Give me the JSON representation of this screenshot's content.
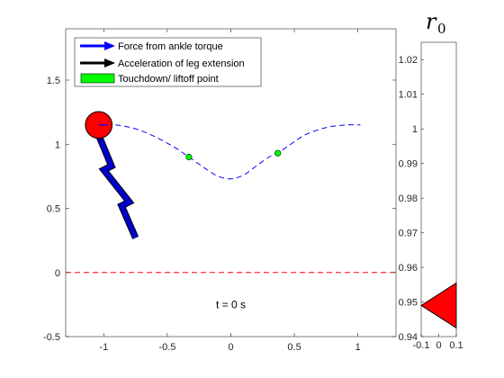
{
  "chart_data": [
    {
      "type": "line",
      "title": "",
      "xlabel": "",
      "ylabel": "",
      "xlim": [
        -1.3,
        1.3
      ],
      "ylim": [
        -0.5,
        1.9
      ],
      "x_ticks": [
        -1,
        -0.5,
        0,
        0.5,
        1
      ],
      "x_tick_labels": [
        "-1",
        "-0.5",
        "0",
        "0.5",
        "1"
      ],
      "y_ticks": [
        -0.5,
        0,
        0.5,
        1,
        1.5
      ],
      "y_tick_labels": [
        "-0.5",
        "0",
        "0.5",
        "1",
        "1.5"
      ],
      "grid": false,
      "legend_position": "top-left",
      "legend": [
        {
          "label": "Force from ankle torque",
          "color": "#0000ff",
          "marker": "arrow"
        },
        {
          "label": "Acceleration of leg extension",
          "color": "#000000",
          "marker": "arrow"
        },
        {
          "label": "Touchdown/ liftoff point",
          "color": "#00ff00",
          "marker": "patch"
        }
      ],
      "series": [
        {
          "style": "dashed",
          "color": "#0000ff",
          "x": [
            -1.05,
            -0.9,
            -0.75,
            -0.6,
            -0.45,
            -0.33,
            -0.2,
            -0.1,
            0,
            0.1,
            0.2,
            0.3,
            0.37,
            0.5,
            0.6,
            0.75,
            0.9,
            1.02
          ],
          "y": [
            1.16,
            1.15,
            1.12,
            1.06,
            0.98,
            0.9,
            0.81,
            0.75,
            0.73,
            0.76,
            0.83,
            0.9,
            0.93,
            1.02,
            1.08,
            1.13,
            1.15,
            1.15
          ]
        },
        {
          "style": "dashed",
          "color": "#ff0000",
          "x": [
            -1.3,
            1.3
          ],
          "y": [
            0,
            0
          ]
        }
      ],
      "touchdown_points": [
        {
          "x": -0.33,
          "y": 0.9
        },
        {
          "x": 0.37,
          "y": 0.93
        }
      ],
      "body": {
        "x": -1.04,
        "y": 1.15,
        "radius": 0.105,
        "color": "#ff0000"
      },
      "leg": {
        "color": "#0000cc",
        "x": [
          -1.04,
          -0.94,
          -1.0,
          -0.8,
          -0.86,
          -0.75
        ],
        "y": [
          1.07,
          0.83,
          0.8,
          0.55,
          0.52,
          0.27
        ]
      },
      "annotation": {
        "text": "t = 0 s",
        "x": 0,
        "y": -0.25
      }
    },
    {
      "type": "bar",
      "title": "r0",
      "title_main": "r",
      "title_sub": "0",
      "xlim": [
        -0.1,
        0.1
      ],
      "ylim": [
        0.94,
        1.025
      ],
      "x_tick_labels": [
        "-0.1",
        "0",
        "0.1"
      ],
      "y_ticks": [
        0.94,
        0.95,
        0.96,
        0.97,
        0.98,
        0.99,
        1,
        1.01,
        1.02
      ],
      "y_tick_labels": [
        "0.94",
        "0.95",
        "0.96",
        "0.97",
        "0.98",
        "0.99",
        "1",
        "1.01",
        "1.02"
      ],
      "indicator": {
        "shape": "triangle",
        "value": 0.949,
        "color": "#ff0000"
      }
    }
  ]
}
